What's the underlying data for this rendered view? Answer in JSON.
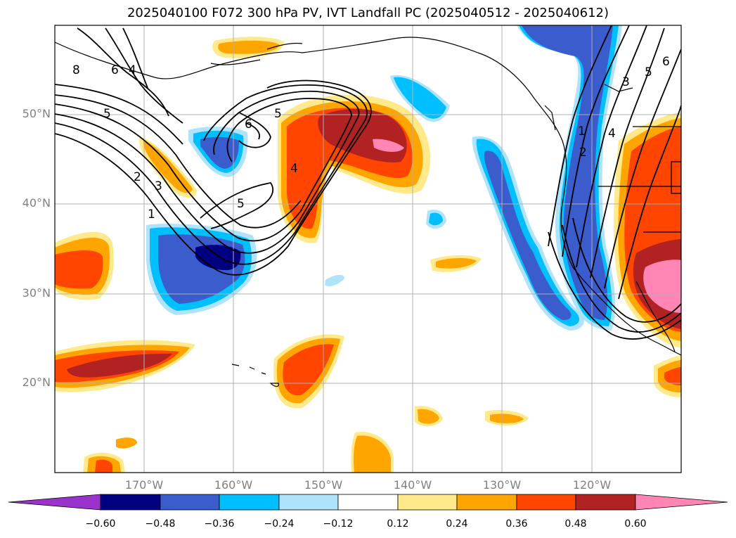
{
  "title": "2025040100 F072 300 hPa PV, IVT Landfall PC (2025040512 - 2025040612)",
  "lat_labels": [
    "50°N",
    "40°N",
    "30°N",
    "20°N"
  ],
  "lon_labels": [
    "170°W",
    "160°W",
    "150°W",
    "140°W",
    "130°W",
    "120°W"
  ],
  "contour_labels": [
    "8",
    "6",
    "4",
    "5",
    "6",
    "5",
    "2",
    "3",
    "1",
    "5",
    "4",
    "3",
    "5",
    "6",
    "1",
    "2",
    "4"
  ],
  "colorbar": {
    "labels": [
      "−0.60",
      "−0.48",
      "−0.36",
      "−0.24",
      "−0.12",
      "0.12",
      "0.24",
      "0.36",
      "0.48",
      "0.60"
    ],
    "colors": [
      "#9933cc",
      "#000080",
      "#3a5ccc",
      "#00bfff",
      "#aee3fb",
      "#ffffff",
      "#ffe98a",
      "#ffa500",
      "#ff4500",
      "#b22222",
      "#ff85b5"
    ]
  }
}
